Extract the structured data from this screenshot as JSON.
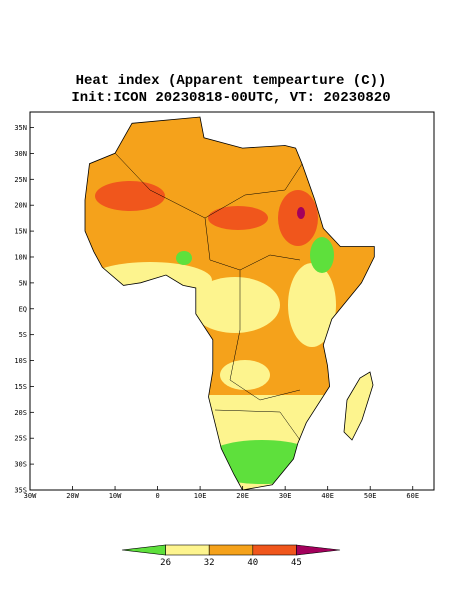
{
  "header": {
    "title": "Heat index (Apparent tempearture (C))",
    "subtitle": "Init:ICON 20230818-00UTC, VT: 20230820"
  },
  "map": {
    "xlim": [
      -30,
      65
    ],
    "ylim": [
      -35,
      38
    ],
    "xticks": [
      {
        "value": -30,
        "label": "30W"
      },
      {
        "value": -20,
        "label": "20W"
      },
      {
        "value": -10,
        "label": "10W"
      },
      0,
      {
        "value": 10,
        "label": "10E"
      },
      {
        "value": 20,
        "label": "20E"
      },
      {
        "value": 30,
        "label": "30E"
      },
      {
        "value": 40,
        "label": "40E"
      },
      {
        "value": 50,
        "label": "50E"
      },
      {
        "value": 60,
        "label": "60E"
      }
    ],
    "yticks": [
      {
        "value": 35,
        "label": "35N"
      },
      {
        "value": 30,
        "label": "30N"
      },
      {
        "value": 25,
        "label": "25N"
      },
      {
        "value": 20,
        "label": "20N"
      },
      {
        "value": 15,
        "label": "15N"
      },
      {
        "value": 10,
        "label": "10N"
      },
      {
        "value": 5,
        "label": "5N"
      },
      {
        "value": 0,
        "label": "EQ"
      },
      {
        "value": -5,
        "label": "5S"
      },
      {
        "value": -10,
        "label": "10S"
      },
      {
        "value": -15,
        "label": "15S"
      },
      {
        "value": -20,
        "label": "20S"
      },
      {
        "value": -25,
        "label": "25S"
      },
      {
        "value": -30,
        "label": "30S"
      },
      {
        "value": -35,
        "label": "35S"
      }
    ]
  },
  "colorbar": {
    "levels": [
      26,
      32,
      40,
      45
    ],
    "colors": [
      "#5ee03c",
      "#fdf48e",
      "#f5a21b",
      "#f0561c",
      "#a3005c"
    ]
  }
}
